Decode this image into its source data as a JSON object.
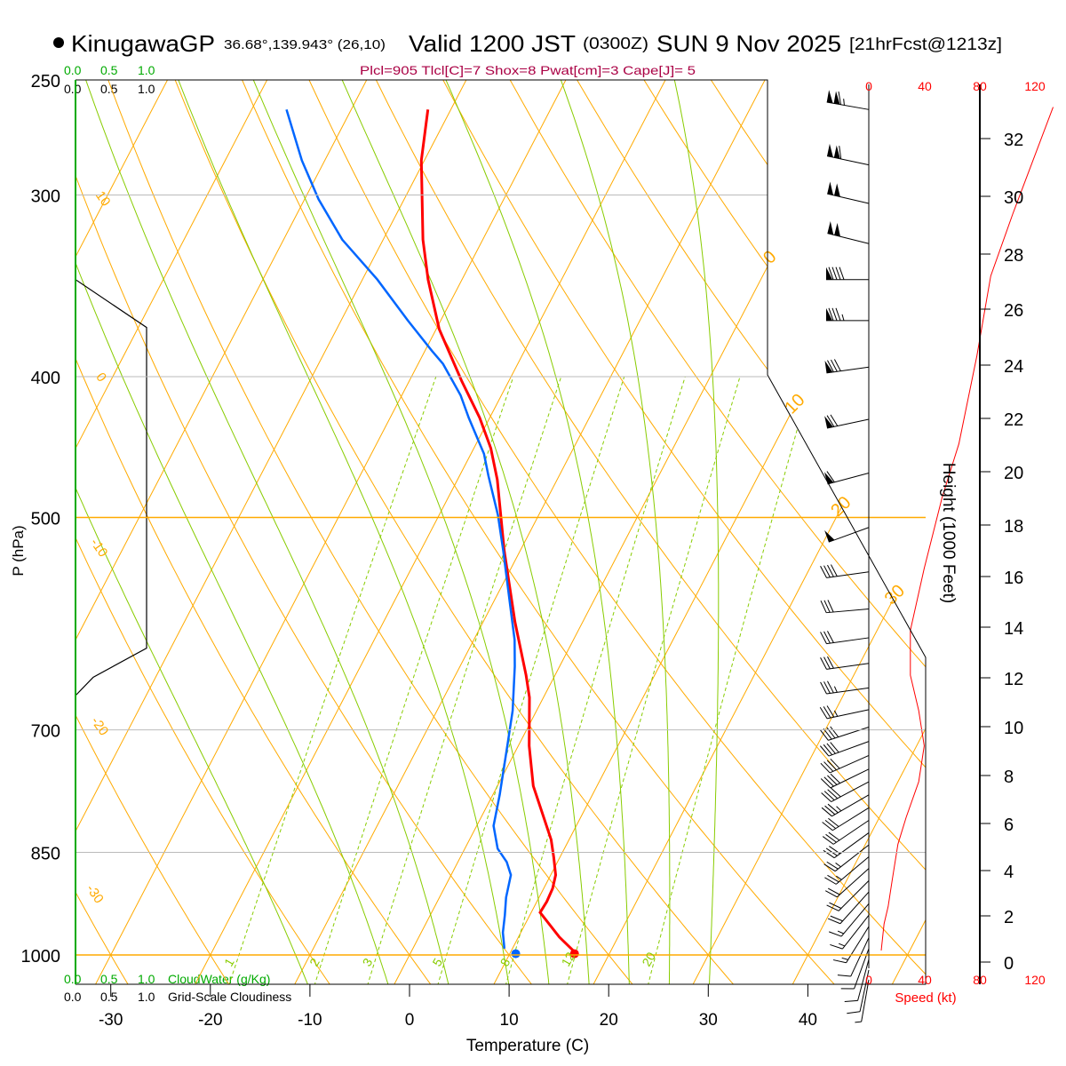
{
  "header": {
    "station": "KinugawaGP",
    "coords": "36.68°,139.943° (26,10)",
    "valid": "Valid 1200 JST",
    "zulu": "(0300Z)",
    "date": "SUN 9 Nov 2025",
    "forecast": "[21hrFcst@1213z]",
    "indices": "Plcl=905 Tlcl[C]=7 Shox=8 Pwat[cm]=3 Cape[J]= 5"
  },
  "colors": {
    "temp": "#ff0000",
    "dewpoint": "#0066ff",
    "isotherm": "#ffaa00",
    "moist": "#88cc00",
    "mixing": "#88cc00",
    "indices": "#aa0044",
    "cloudwater": "#00aa00",
    "speed": "#ff0000"
  },
  "cloud_scale": {
    "top_green": [
      "0.0",
      "0.5",
      "1.0"
    ],
    "top_black": [
      "0.0",
      "0.5",
      "1.0"
    ],
    "bottom_green": [
      "0.0",
      "0.5",
      "1.0"
    ],
    "bottom_black": [
      "0.0",
      "0.5",
      "1.0"
    ],
    "cloudwater_label": "CloudWater (g/Kg)",
    "cloudiness_label": "Grid-Scale Cloudiness"
  },
  "speed_axis": {
    "ticks": [
      "0",
      "40",
      "80",
      "120"
    ],
    "label": "Speed (kt)"
  },
  "chart_data": {
    "type": "line",
    "title": "Skew-T log-P sounding",
    "xlabel": "Temperature (C)",
    "ylabel": "P (hPa)",
    "y2label": "Height (1000 Feet)",
    "xticks": [
      -30,
      -20,
      -10,
      0,
      10,
      20,
      30,
      40
    ],
    "pressure_levels": [
      250,
      300,
      400,
      500,
      700,
      850,
      1000
    ],
    "height_ticks": [
      0,
      2,
      4,
      6,
      8,
      10,
      12,
      14,
      16,
      18,
      20,
      22,
      24,
      26,
      28,
      30,
      32
    ],
    "xlim": [
      -33,
      46
    ],
    "ylim": [
      1048,
      250
    ],
    "theta_labels": [
      {
        "text": "10",
        "theta": 10,
        "p": 300
      },
      {
        "text": "0",
        "theta": 0,
        "p": 400
      },
      {
        "text": "-10",
        "theta": -10,
        "p": 520
      },
      {
        "text": "-20",
        "theta": -20,
        "p": 690
      },
      {
        "text": "-30",
        "theta": -30,
        "p": 900
      }
    ],
    "isotherm_labels": [
      {
        "text": "0",
        "t": 0,
        "p": 335
      },
      {
        "text": "10",
        "t": 10,
        "p": 425
      },
      {
        "text": "20",
        "t": 20,
        "p": 500
      },
      {
        "text": "30",
        "t": 30,
        "p": 575
      }
    ],
    "mixing_ratio_labels": [
      "1",
      "2",
      "3",
      "5",
      "8",
      "12",
      "20"
    ],
    "mixing_ratios": [
      1,
      2,
      3,
      5,
      8,
      12,
      20
    ],
    "series": [
      {
        "name": "Temperature",
        "p": [
          994,
          972,
          935,
          919,
          900,
          881,
          857,
          833,
          765,
          718,
          665,
          642,
          590,
          527,
          471,
          448,
          427,
          403,
          371,
          343,
          322,
          284,
          262
        ],
        "t": [
          16.3,
          14.1,
          10.9,
          11.0,
          10.9,
          10.5,
          9.4,
          8.2,
          3.6,
          1.1,
          -1.4,
          -2.9,
          -6.8,
          -11.6,
          -16.0,
          -18.3,
          -21.0,
          -24.7,
          -29.7,
          -33.4,
          -36.0,
          -40.3,
          -42.3
        ]
      },
      {
        "name": "Dewpoint",
        "p": [
          990,
          965,
          939,
          913,
          881,
          863,
          845,
          815,
          776,
          718,
          679,
          633,
          607,
          574,
          527,
          498,
          468,
          452,
          427,
          412,
          392,
          384,
          366,
          343,
          322,
          302,
          284,
          262
        ],
        "t": [
          9.2,
          8.2,
          7.5,
          6.7,
          6.0,
          4.9,
          3.3,
          1.7,
          0.7,
          -1.1,
          -2.4,
          -4.5,
          -5.9,
          -8.2,
          -11.7,
          -14.1,
          -17.1,
          -18.7,
          -22.1,
          -24.1,
          -27.5,
          -29.3,
          -33.3,
          -38.5,
          -44.1,
          -48.6,
          -52.3,
          -56.5
        ]
      },
      {
        "name": "Wind speed (kt)",
        "p": [
          261,
          309,
          341,
          387,
          445,
          484,
          542,
          598,
          642,
          679,
          718,
          760,
          804,
          839,
          887,
          926,
          952,
          993
        ],
        "v": [
          133,
          104,
          88,
          78,
          65,
          53,
          40,
          30,
          30,
          36,
          40,
          36,
          27,
          21,
          17,
          14,
          11,
          9
        ]
      },
      {
        "name": "Grid-scale cloudiness",
        "p": [
          343,
          370,
          615,
          644,
          663
        ],
        "v": [
          0,
          1,
          1,
          0.25,
          0
        ]
      }
    ],
    "surface_points": [
      {
        "name": "Surface temperature",
        "t": 16.5,
        "p": 998
      },
      {
        "name": "Surface dewpoint",
        "t": 10.6,
        "p": 998
      }
    ],
    "winds": [
      {
        "p": 262,
        "dir": 280,
        "kt": 115
      },
      {
        "p": 286,
        "dir": 282,
        "kt": 110
      },
      {
        "p": 304,
        "dir": 283,
        "kt": 100
      },
      {
        "p": 324,
        "dir": 284,
        "kt": 100
      },
      {
        "p": 343,
        "dir": 270,
        "kt": 90
      },
      {
        "p": 366,
        "dir": 270,
        "kt": 85
      },
      {
        "p": 394,
        "dir": 262,
        "kt": 80
      },
      {
        "p": 428,
        "dir": 258,
        "kt": 70
      },
      {
        "p": 466,
        "dir": 255,
        "kt": 60
      },
      {
        "p": 508,
        "dir": 250,
        "kt": 50
      },
      {
        "p": 545,
        "dir": 262,
        "kt": 40
      },
      {
        "p": 578,
        "dir": 265,
        "kt": 30
      },
      {
        "p": 605,
        "dir": 262,
        "kt": 30
      },
      {
        "p": 630,
        "dir": 262,
        "kt": 30
      },
      {
        "p": 655,
        "dir": 262,
        "kt": 35
      },
      {
        "p": 678,
        "dir": 258,
        "kt": 35
      },
      {
        "p": 697,
        "dir": 252,
        "kt": 40
      },
      {
        "p": 713,
        "dir": 250,
        "kt": 40
      },
      {
        "p": 729,
        "dir": 246,
        "kt": 40
      },
      {
        "p": 745,
        "dir": 244,
        "kt": 40
      },
      {
        "p": 760,
        "dir": 242,
        "kt": 38
      },
      {
        "p": 776,
        "dir": 240,
        "kt": 35
      },
      {
        "p": 792,
        "dir": 238,
        "kt": 32
      },
      {
        "p": 808,
        "dir": 236,
        "kt": 30
      },
      {
        "p": 824,
        "dir": 234,
        "kt": 28
      },
      {
        "p": 840,
        "dir": 232,
        "kt": 25
      },
      {
        "p": 856,
        "dir": 230,
        "kt": 24
      },
      {
        "p": 872,
        "dir": 228,
        "kt": 22
      },
      {
        "p": 889,
        "dir": 225,
        "kt": 20
      },
      {
        "p": 905,
        "dir": 222,
        "kt": 18
      },
      {
        "p": 922,
        "dir": 220,
        "kt": 17
      },
      {
        "p": 939,
        "dir": 218,
        "kt": 15
      },
      {
        "p": 956,
        "dir": 212,
        "kt": 13
      },
      {
        "p": 973,
        "dir": 205,
        "kt": 12
      },
      {
        "p": 990,
        "dir": 200,
        "kt": 10
      },
      {
        "p": 1007,
        "dir": 195,
        "kt": 10
      },
      {
        "p": 1024,
        "dir": 192,
        "kt": 8
      },
      {
        "p": 1040,
        "dir": 190,
        "kt": 6
      }
    ]
  }
}
